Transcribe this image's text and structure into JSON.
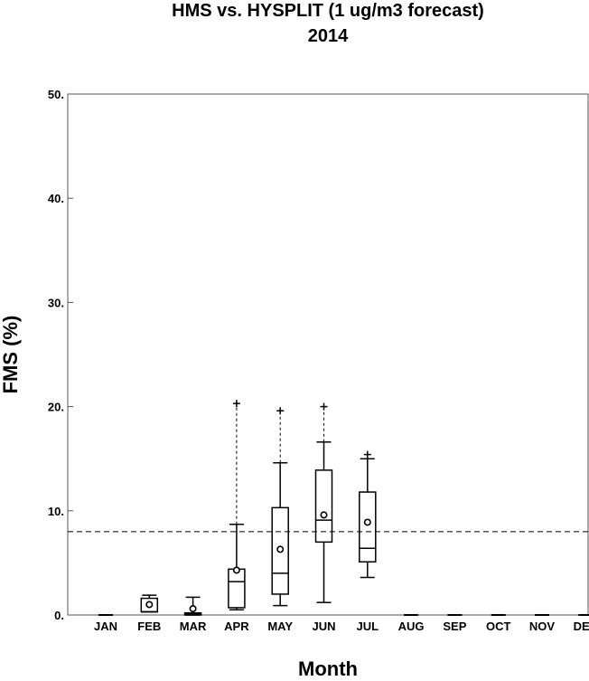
{
  "chart_data": {
    "type": "box",
    "title": "HMS vs. HYSPLIT (1 ug/m3 forecast)",
    "subtitle": "2014",
    "xlabel": "Month",
    "ylabel": "FMS (%)",
    "ylim": [
      0,
      50
    ],
    "yticks": [
      "0.",
      "10.",
      "20.",
      "30.",
      "40.",
      "50."
    ],
    "ytick_values": [
      0,
      10,
      20,
      30,
      40,
      50
    ],
    "categories": [
      "JAN",
      "FEB",
      "MAR",
      "APR",
      "MAY",
      "JUN",
      "JUL",
      "AUG",
      "SEP",
      "OCT",
      "NOV",
      "DEC"
    ],
    "reference_line": 8.0,
    "grid": false,
    "boxes": [
      {
        "month": "JAN",
        "min": 0,
        "q1": 0,
        "median": 0,
        "q3": 0,
        "max": 0,
        "mean": null,
        "outlier_max": null
      },
      {
        "month": "FEB",
        "min": 0.3,
        "q1": 0.3,
        "median": 0.3,
        "q3": 1.6,
        "max": 1.9,
        "mean": 1.0,
        "outlier_max": null
      },
      {
        "month": "MAR",
        "min": 0,
        "q1": 0,
        "median": 0.1,
        "q3": 0.2,
        "max": 1.7,
        "mean": 0.6,
        "outlier_max": null
      },
      {
        "month": "APR",
        "min": 0.5,
        "q1": 0.7,
        "median": 3.2,
        "q3": 4.4,
        "max": 8.7,
        "mean": 4.3,
        "outlier_max": 20.3
      },
      {
        "month": "MAY",
        "min": 0.9,
        "q1": 2.0,
        "median": 4.0,
        "q3": 10.3,
        "max": 14.6,
        "mean": 6.3,
        "outlier_max": 19.6
      },
      {
        "month": "JUN",
        "min": 1.2,
        "q1": 7.0,
        "median": 9.1,
        "q3": 13.9,
        "max": 16.6,
        "mean": 9.6,
        "outlier_max": 20.0
      },
      {
        "month": "JUL",
        "min": 3.6,
        "q1": 5.1,
        "median": 6.4,
        "q3": 11.8,
        "max": 15.0,
        "mean": 8.9,
        "outlier_max": 15.4
      },
      {
        "month": "AUG",
        "min": 0,
        "q1": 0,
        "median": 0,
        "q3": 0,
        "max": 0,
        "mean": null,
        "outlier_max": null
      },
      {
        "month": "SEP",
        "min": 0,
        "q1": 0,
        "median": 0,
        "q3": 0,
        "max": 0,
        "mean": null,
        "outlier_max": null
      },
      {
        "month": "OCT",
        "min": 0,
        "q1": 0,
        "median": 0,
        "q3": 0,
        "max": 0,
        "mean": null,
        "outlier_max": null
      },
      {
        "month": "NOV",
        "min": 0,
        "q1": 0,
        "median": 0,
        "q3": 0,
        "max": 0,
        "mean": null,
        "outlier_max": null
      },
      {
        "month": "DEC",
        "min": 0,
        "q1": 0,
        "median": 0,
        "q3": 0,
        "max": 0,
        "mean": null,
        "outlier_max": null
      }
    ]
  }
}
